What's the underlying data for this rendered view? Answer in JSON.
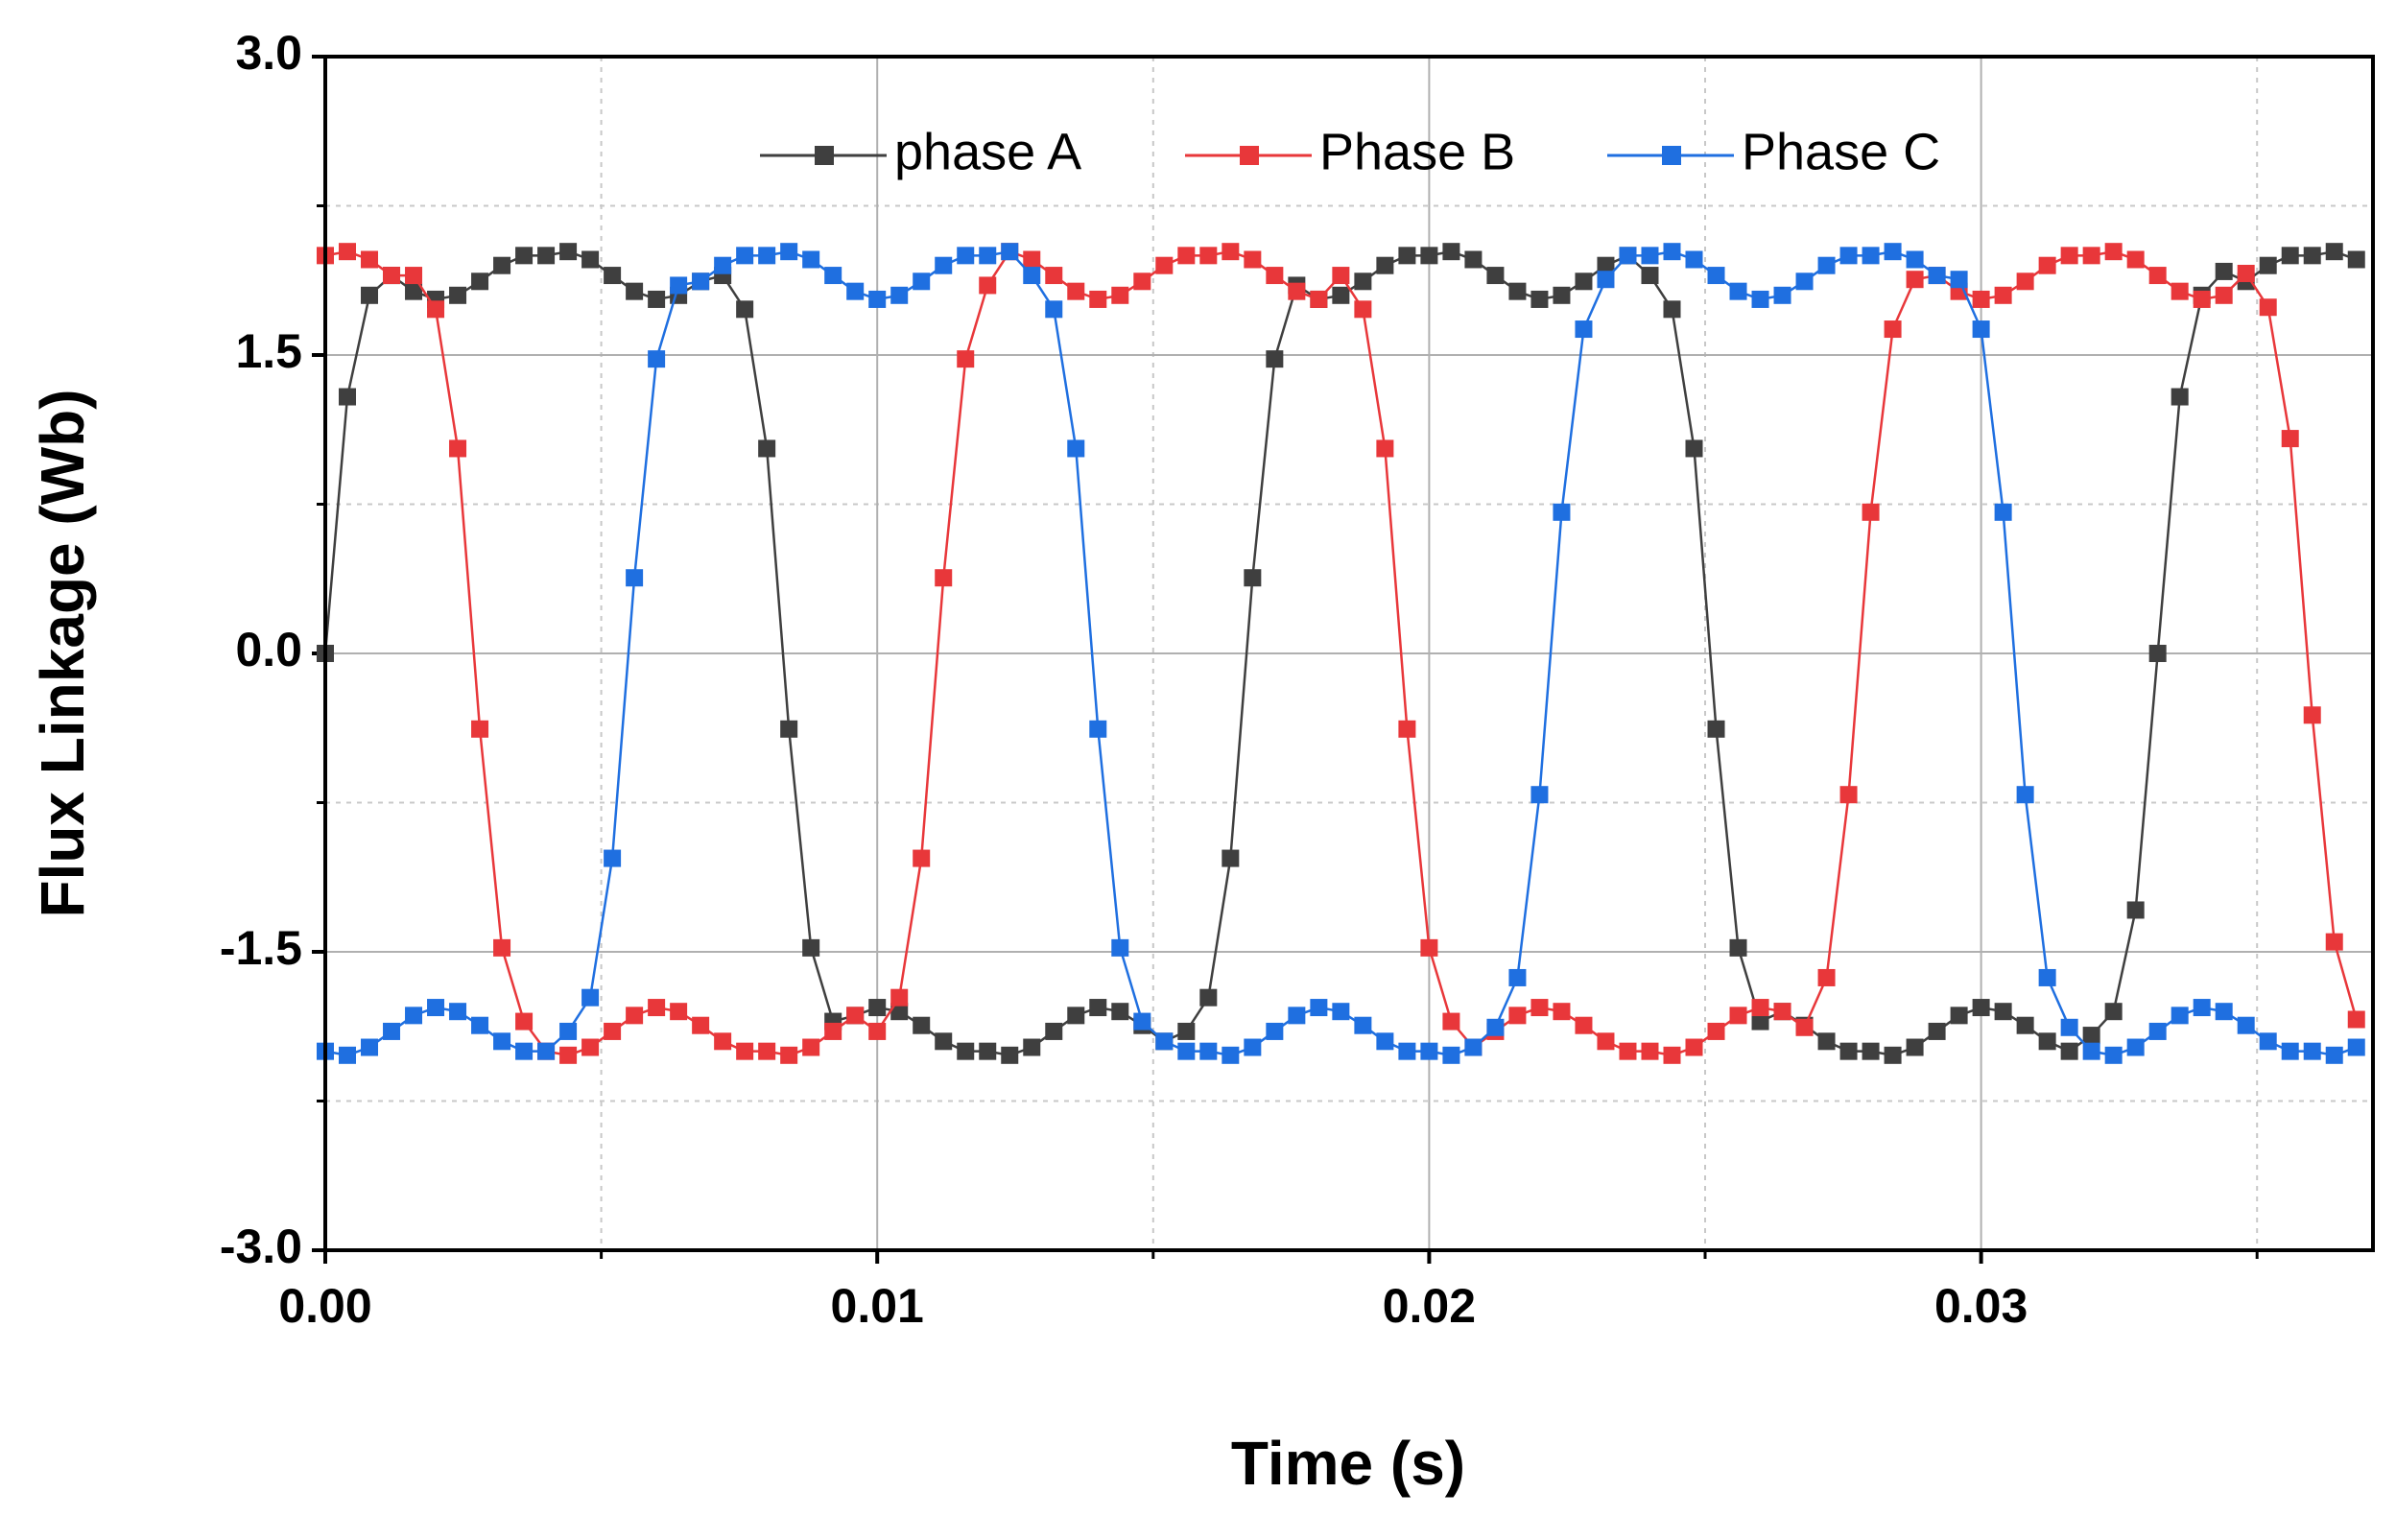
{
  "chart_data": {
    "type": "line",
    "xlabel": "Time (s)",
    "ylabel": "Flux Linkage (Wb)",
    "x": [
      0,
      0.0004,
      0.0008,
      0.0012,
      0.0016,
      0.002,
      0.0024,
      0.0028,
      0.0032,
      0.0036,
      0.004,
      0.0044,
      0.0048,
      0.0052,
      0.0056,
      0.006,
      0.0064,
      0.0068,
      0.0072,
      0.0076,
      0.008,
      0.0084,
      0.0088,
      0.0092,
      0.0096,
      0.01,
      0.0104,
      0.0108,
      0.0112,
      0.0116,
      0.012,
      0.0124,
      0.0128,
      0.0132,
      0.0136,
      0.014,
      0.0144,
      0.0148,
      0.0152,
      0.0156,
      0.016,
      0.0164,
      0.0168,
      0.0172,
      0.0176,
      0.018,
      0.0184,
      0.0188,
      0.0192,
      0.0196,
      0.02,
      0.0204,
      0.0208,
      0.0212,
      0.0216,
      0.022,
      0.0224,
      0.0228,
      0.0232,
      0.0236,
      0.024,
      0.0244,
      0.0248,
      0.0252,
      0.0256,
      0.026,
      0.0264,
      0.0268,
      0.0272,
      0.0276,
      0.028,
      0.0284,
      0.0288,
      0.0292,
      0.0296,
      0.03,
      0.0304,
      0.0308,
      0.0312,
      0.0316,
      0.032,
      0.0324,
      0.0328,
      0.0332,
      0.0336,
      0.034,
      0.0344,
      0.0348,
      0.0352,
      0.0356,
      0.036,
      0.0364,
      0.0368
    ],
    "series": [
      {
        "name": "phase A",
        "color": "#3f3f3f",
        "values": [
          0,
          1.29,
          1.8,
          1.9,
          1.82,
          1.78,
          1.8,
          1.87,
          1.95,
          2.0,
          2.0,
          2.02,
          1.98,
          1.9,
          1.82,
          1.78,
          1.8,
          1.87,
          1.9,
          1.73,
          1.03,
          -0.38,
          -1.48,
          -1.85,
          -1.82,
          -1.78,
          -1.8,
          -1.87,
          -1.95,
          -2.0,
          -2.0,
          -2.02,
          -1.98,
          -1.9,
          -1.82,
          -1.78,
          -1.8,
          -1.87,
          -1.95,
          -1.9,
          -1.73,
          -1.03,
          0.38,
          1.48,
          1.85,
          1.78,
          1.8,
          1.87,
          1.95,
          2.0,
          2.0,
          2.02,
          1.98,
          1.9,
          1.82,
          1.78,
          1.8,
          1.87,
          1.95,
          2.0,
          1.9,
          1.73,
          1.03,
          -0.38,
          -1.48,
          -1.85,
          -1.8,
          -1.87,
          -1.95,
          -2.0,
          -2.0,
          -2.02,
          -1.98,
          -1.9,
          -1.82,
          -1.78,
          -1.8,
          -1.87,
          -1.95,
          -2.0,
          -1.92,
          -1.8,
          -1.29,
          0,
          1.29,
          1.8,
          1.92,
          1.87,
          1.95,
          2.0,
          2.0,
          2.02,
          1.98
        ]
      },
      {
        "name": "Phase B",
        "color": "#e8373a",
        "values": [
          2.0,
          2.02,
          1.98,
          1.9,
          1.9,
          1.73,
          1.03,
          -0.38,
          -1.48,
          -1.85,
          -2.0,
          -2.02,
          -1.98,
          -1.9,
          -1.82,
          -1.78,
          -1.8,
          -1.87,
          -1.95,
          -2.0,
          -2.0,
          -2.02,
          -1.98,
          -1.9,
          -1.82,
          -1.9,
          -1.73,
          -1.03,
          0.38,
          1.48,
          1.85,
          2.02,
          1.98,
          1.9,
          1.82,
          1.78,
          1.8,
          1.87,
          1.95,
          2.0,
          2.0,
          2.02,
          1.98,
          1.9,
          1.82,
          1.78,
          1.9,
          1.73,
          1.03,
          -0.38,
          -1.48,
          -1.85,
          -1.98,
          -1.9,
          -1.82,
          -1.78,
          -1.8,
          -1.87,
          -1.95,
          -2.0,
          -2.0,
          -2.02,
          -1.98,
          -1.9,
          -1.82,
          -1.78,
          -1.8,
          -1.88,
          -1.63,
          -0.71,
          0.71,
          1.63,
          1.88,
          1.9,
          1.82,
          1.78,
          1.8,
          1.87,
          1.95,
          2.0,
          2.0,
          2.02,
          1.98,
          1.9,
          1.82,
          1.78,
          1.8,
          1.91,
          1.74,
          1.08,
          -0.31,
          -1.45,
          -1.84
        ]
      },
      {
        "name": "Phase C",
        "color": "#1f6fe0",
        "values": [
          -2.0,
          -2.02,
          -1.98,
          -1.9,
          -1.82,
          -1.78,
          -1.8,
          -1.87,
          -1.95,
          -2.0,
          -2.0,
          -1.9,
          -1.73,
          -1.03,
          0.38,
          1.48,
          1.85,
          1.87,
          1.95,
          2.0,
          2.0,
          2.02,
          1.98,
          1.9,
          1.82,
          1.78,
          1.8,
          1.87,
          1.95,
          2.0,
          2.0,
          2.02,
          1.9,
          1.73,
          1.03,
          -0.38,
          -1.48,
          -1.85,
          -1.95,
          -2.0,
          -2.0,
          -2.02,
          -1.98,
          -1.9,
          -1.82,
          -1.78,
          -1.8,
          -1.87,
          -1.95,
          -2.0,
          -2.0,
          -2.02,
          -1.98,
          -1.88,
          -1.63,
          -0.71,
          0.71,
          1.63,
          1.88,
          2.0,
          2.0,
          2.02,
          1.98,
          1.9,
          1.82,
          1.78,
          1.8,
          1.87,
          1.95,
          2.0,
          2.0,
          2.02,
          1.98,
          1.9,
          1.88,
          1.63,
          0.71,
          -0.71,
          -1.63,
          -1.88,
          -2.0,
          -2.02,
          -1.98,
          -1.9,
          -1.82,
          -1.78,
          -1.8,
          -1.87,
          -1.95,
          -2.0,
          -2.0,
          -2.02,
          -1.98
        ]
      }
    ],
    "xlim": [
      0,
      0.0371
    ],
    "ylim": [
      -3,
      3
    ],
    "xticks": [
      {
        "value": 0,
        "label": "0.00"
      },
      0.01,
      0.02,
      0.03
    ],
    "yticks": [
      {
        "value": -3,
        "label": "-3.0"
      },
      {
        "value": -1.5,
        "label": "-1.5"
      },
      {
        "value": 0,
        "label": "0.0"
      },
      {
        "value": 1.5,
        "label": "1.5"
      },
      {
        "value": 3,
        "label": "3.0"
      }
    ],
    "xminor": [
      0.005,
      0.015,
      0.025,
      0.035
    ],
    "yminor": [
      -2.25,
      -0.75,
      0.75,
      2.25
    ],
    "grid": true,
    "legend": "top"
  }
}
